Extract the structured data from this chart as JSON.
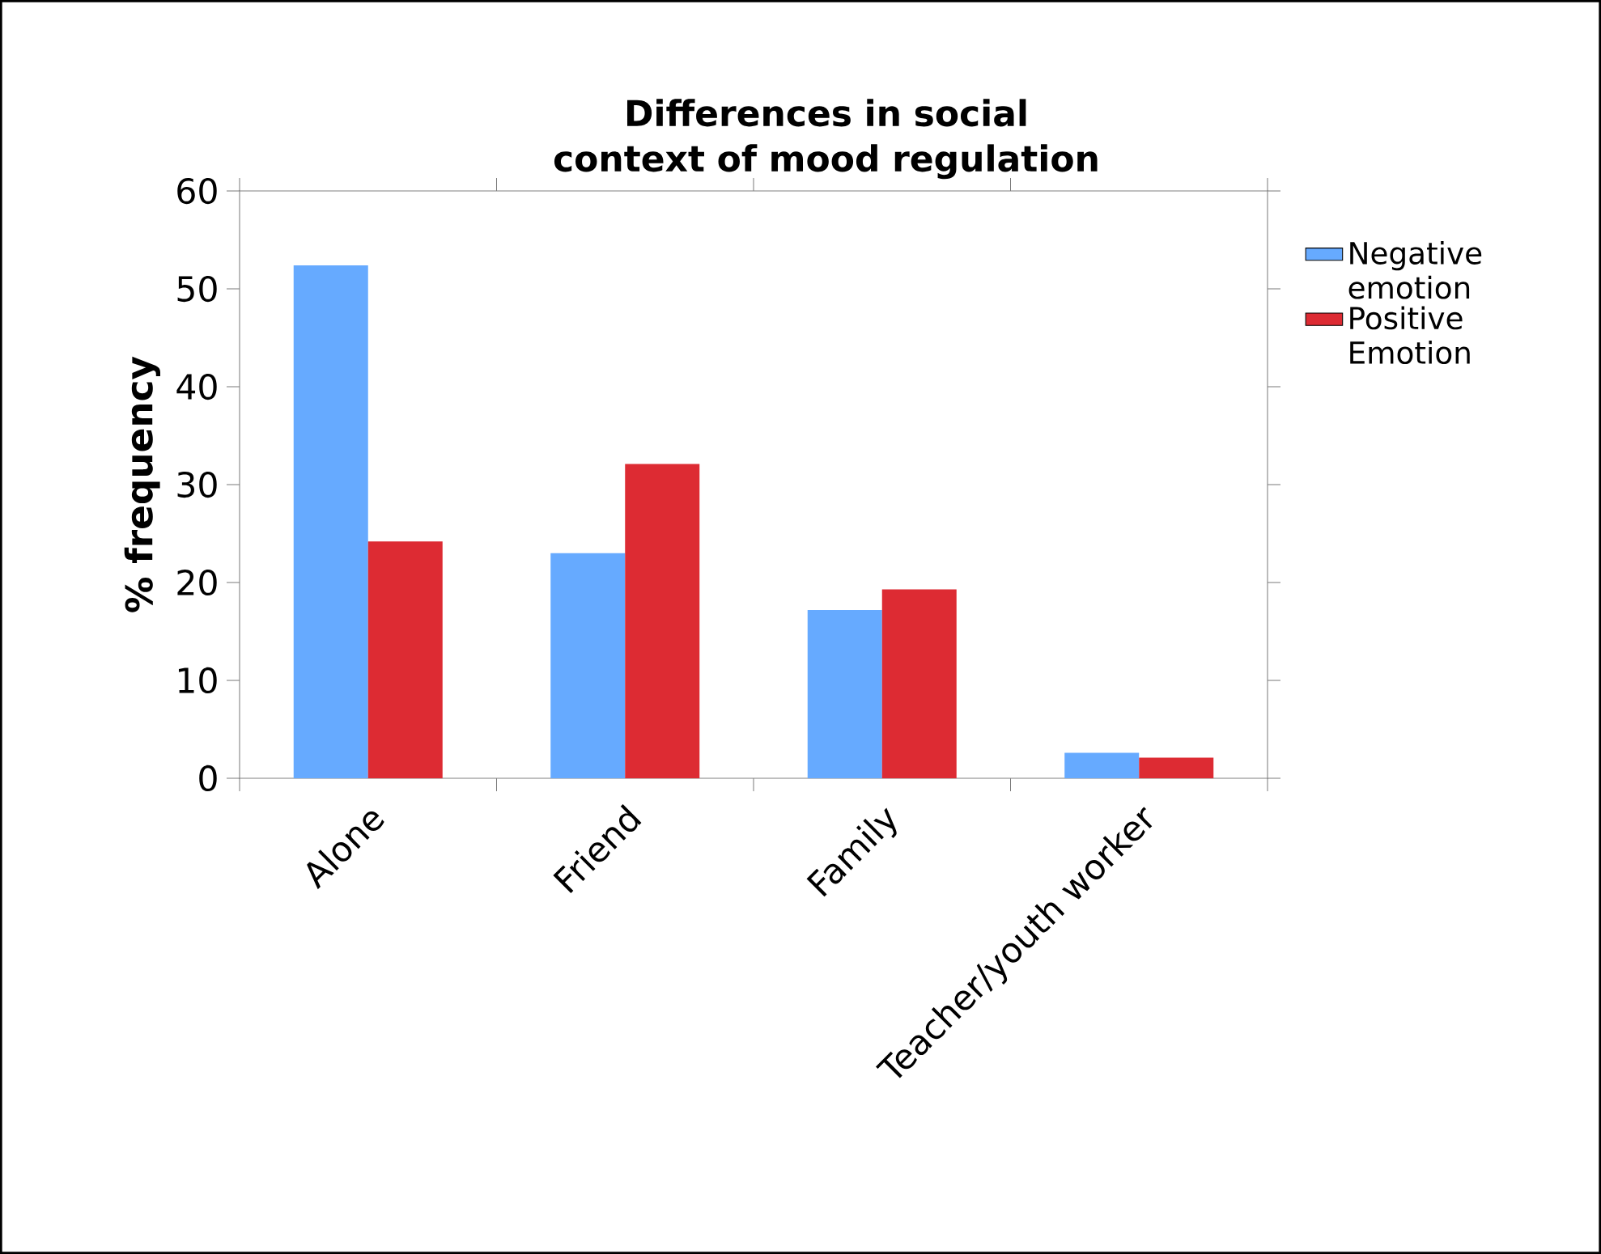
{
  "chart_data": {
    "type": "bar",
    "title": "Differences in social context of mood regulation",
    "ylabel": "% frequency",
    "categories": [
      "Alone",
      "Friend",
      "Family",
      "Teacher/youth worker"
    ],
    "series": [
      {
        "name": "Negative emotion",
        "color": "#66aaff",
        "values": [
          52.4,
          23.0,
          17.2,
          2.6
        ]
      },
      {
        "name": "Positive Emotion",
        "color": "#dd2b33",
        "values": [
          24.2,
          32.1,
          19.3,
          2.1
        ]
      }
    ],
    "ylim": [
      0,
      60
    ],
    "yticks": [
      0,
      10,
      20,
      30,
      40,
      50,
      60
    ],
    "grid": false,
    "legend": "right"
  }
}
